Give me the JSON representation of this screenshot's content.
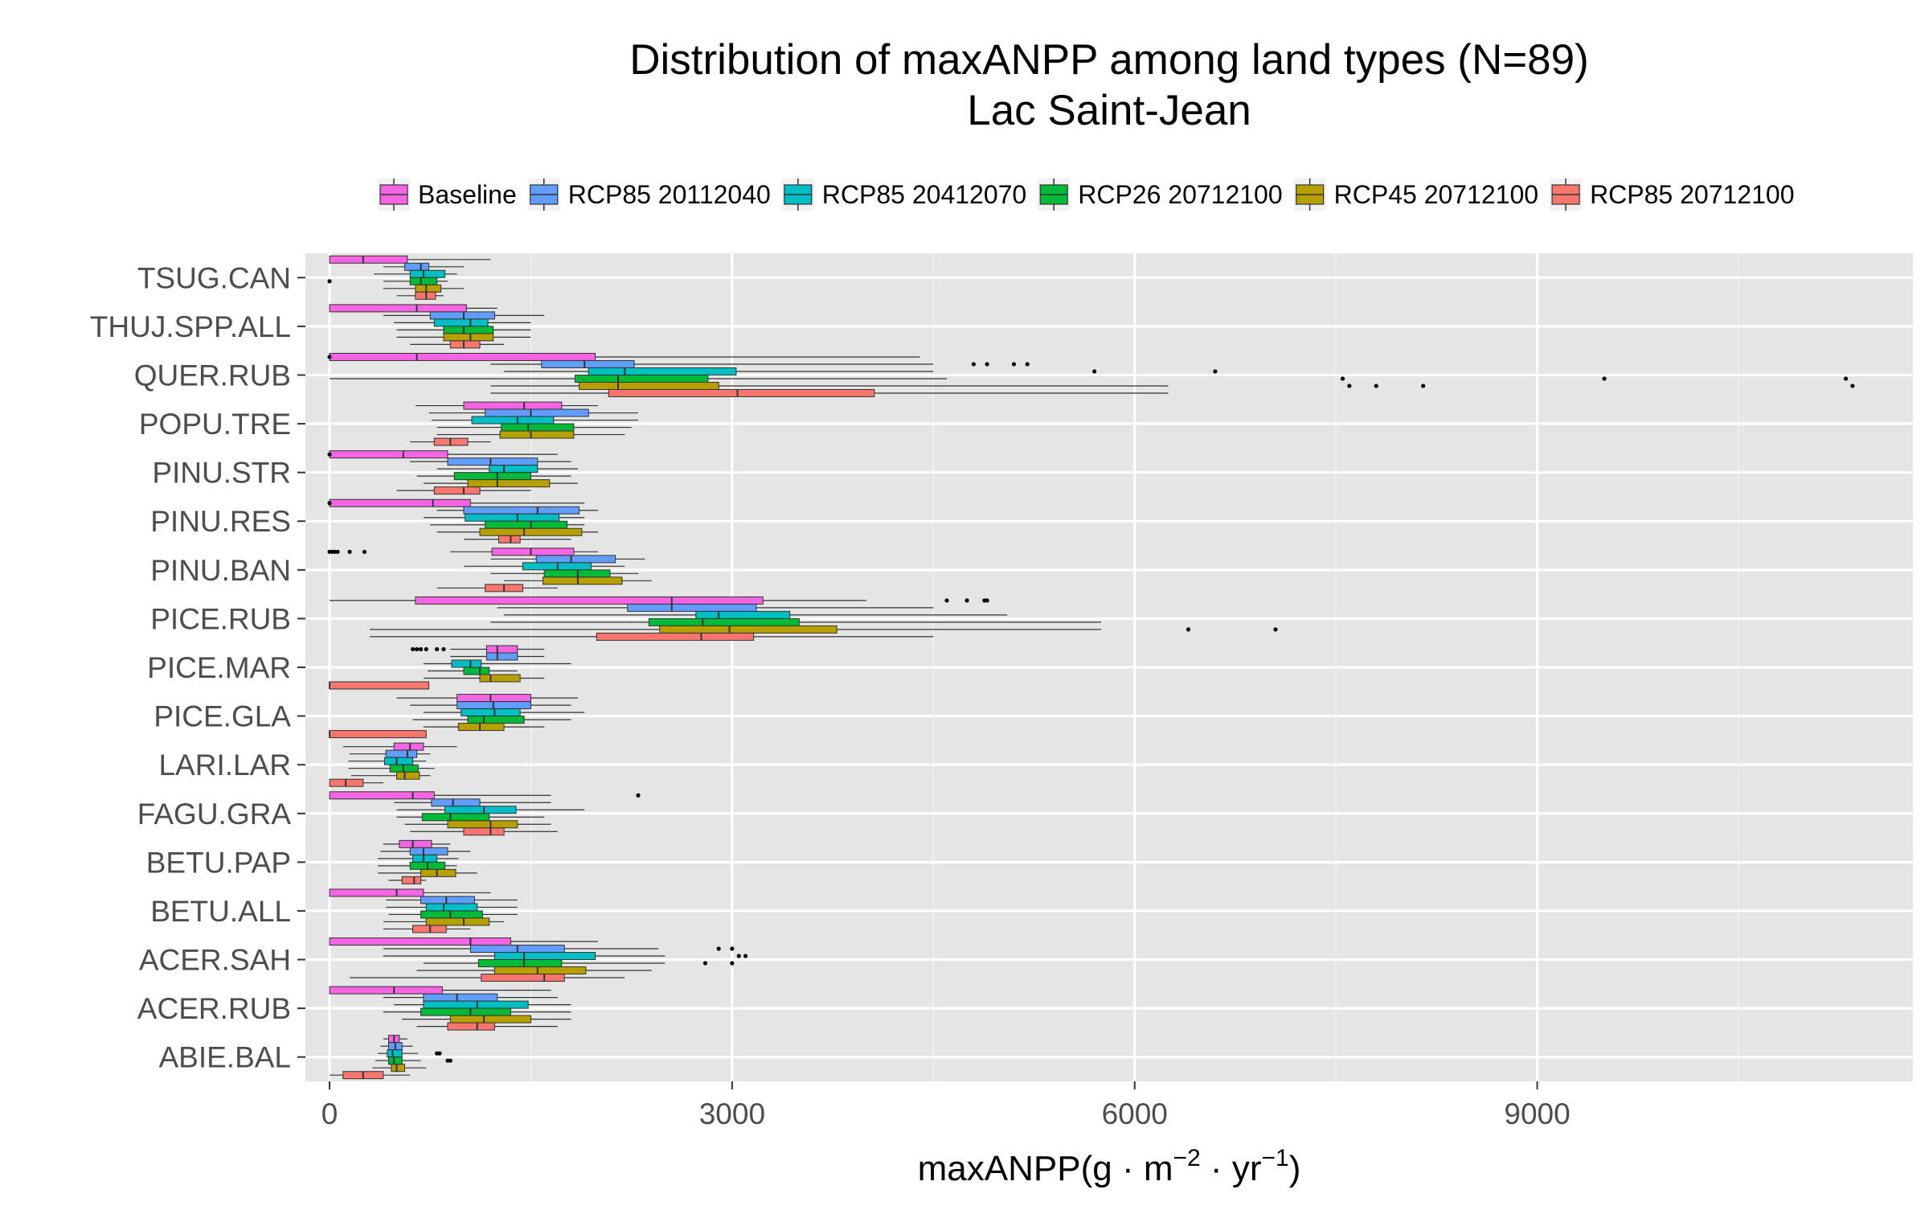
{
  "chart_data": {
    "type": "boxplot",
    "orientation": "horizontal",
    "title": "Distribution of maxANPP among land types (N=89)",
    "subtitle": "Lac Saint-Jean",
    "xlabel": "maxANPP(g · m⁻² · yr⁻¹)",
    "xlabel_parts": {
      "main": "maxANPP(g",
      "dot1": " · ",
      "m": "m",
      "m_exp": "−2",
      "dot2": " · ",
      "yr": "yr",
      "yr_exp": "−1",
      "close": ")"
    },
    "ylabel": "",
    "xlim": [
      -180,
      11800
    ],
    "xticks": [
      0,
      3000,
      6000,
      9000
    ],
    "xtick_labels": [
      "0",
      "3000",
      "6000",
      "9000"
    ],
    "grid": true,
    "legend_position": "top",
    "categories": [
      "ABIE.BAL",
      "ACER.RUB",
      "ACER.SAH",
      "BETU.ALL",
      "BETU.PAP",
      "FAGU.GRA",
      "LARI.LAR",
      "PICE.GLA",
      "PICE.MAR",
      "PICE.RUB",
      "PINU.BAN",
      "PINU.RES",
      "PINU.STR",
      "POPU.TRE",
      "QUER.RUB",
      "THUJ.SPP.ALL",
      "TSUG.CAN"
    ],
    "series": [
      {
        "name": "Baseline",
        "color": "#f564e3",
        "boxes": [
          {
            "q1": 440,
            "med": 480,
            "q3": 520,
            "wl": 400,
            "wh": 580,
            "out": []
          },
          {
            "q1": 0,
            "med": 480,
            "q3": 840,
            "wl": 0,
            "wh": 1650,
            "out": []
          },
          {
            "q1": 0,
            "med": 1050,
            "q3": 1350,
            "wl": 0,
            "wh": 2000,
            "out": []
          },
          {
            "q1": 0,
            "med": 500,
            "q3": 700,
            "wl": 0,
            "wh": 1200,
            "out": []
          },
          {
            "q1": 520,
            "med": 620,
            "q3": 760,
            "wl": 400,
            "wh": 900,
            "out": []
          },
          {
            "q1": 0,
            "med": 620,
            "q3": 780,
            "wl": 0,
            "wh": 1650,
            "out": [
              2300
            ]
          },
          {
            "q1": 480,
            "med": 600,
            "q3": 700,
            "wl": 100,
            "wh": 950,
            "out": []
          },
          {
            "q1": 950,
            "med": 1200,
            "q3": 1500,
            "wl": 500,
            "wh": 1850,
            "out": []
          },
          {
            "q1": 1170,
            "med": 1250,
            "q3": 1400,
            "wl": 900,
            "wh": 1600,
            "out": [
              620,
              650,
              680,
              720,
              800,
              850
            ]
          },
          {
            "q1": 640,
            "med": 2550,
            "q3": 3230,
            "wl": 0,
            "wh": 4000,
            "out": [
              4600,
              4750,
              4880,
              4900
            ]
          },
          {
            "q1": 1210,
            "med": 1500,
            "q3": 1820,
            "wl": 900,
            "wh": 2000,
            "out": [
              0,
              20,
              40,
              60,
              150,
              260
            ]
          },
          {
            "q1": 0,
            "med": 770,
            "q3": 1050,
            "wl": 0,
            "wh": 1900,
            "out": [
              0
            ]
          },
          {
            "q1": 0,
            "med": 550,
            "q3": 880,
            "wl": 0,
            "wh": 1700,
            "out": [
              0
            ]
          },
          {
            "q1": 1000,
            "med": 1450,
            "q3": 1730,
            "wl": 640,
            "wh": 2000,
            "out": []
          },
          {
            "q1": 0,
            "med": 650,
            "q3": 1980,
            "wl": 0,
            "wh": 4400,
            "out": [
              0
            ]
          },
          {
            "q1": 0,
            "med": 650,
            "q3": 1020,
            "wl": 0,
            "wh": 1250,
            "out": []
          },
          {
            "q1": 0,
            "med": 250,
            "q3": 580,
            "wl": 0,
            "wh": 1200,
            "out": []
          }
        ]
      },
      {
        "name": "RCP85 20112040",
        "color": "#619cff",
        "boxes": [
          {
            "q1": 440,
            "med": 490,
            "q3": 540,
            "wl": 380,
            "wh": 620,
            "out": []
          },
          {
            "q1": 700,
            "med": 950,
            "q3": 1250,
            "wl": 400,
            "wh": 1700,
            "out": []
          },
          {
            "q1": 1050,
            "med": 1400,
            "q3": 1750,
            "wl": 400,
            "wh": 2450,
            "out": [
              3000,
              2900
            ]
          },
          {
            "q1": 680,
            "med": 870,
            "q3": 1080,
            "wl": 420,
            "wh": 1400,
            "out": []
          },
          {
            "q1": 600,
            "med": 700,
            "q3": 880,
            "wl": 380,
            "wh": 1050,
            "out": []
          },
          {
            "q1": 760,
            "med": 920,
            "q3": 1120,
            "wl": 480,
            "wh": 1650,
            "out": []
          },
          {
            "q1": 420,
            "med": 580,
            "q3": 650,
            "wl": 150,
            "wh": 750,
            "out": []
          },
          {
            "q1": 950,
            "med": 1220,
            "q3": 1500,
            "wl": 600,
            "wh": 1800,
            "out": []
          },
          {
            "q1": 1170,
            "med": 1250,
            "q3": 1400,
            "wl": 900,
            "wh": 1600,
            "out": []
          },
          {
            "q1": 2220,
            "med": 2550,
            "q3": 3180,
            "wl": 1250,
            "wh": 4500,
            "out": []
          },
          {
            "q1": 1540,
            "med": 1800,
            "q3": 2130,
            "wl": 1200,
            "wh": 2350,
            "out": []
          },
          {
            "q1": 1000,
            "med": 1550,
            "q3": 1860,
            "wl": 800,
            "wh": 2000,
            "out": []
          },
          {
            "q1": 880,
            "med": 1200,
            "q3": 1550,
            "wl": 600,
            "wh": 1800,
            "out": []
          },
          {
            "q1": 1160,
            "med": 1500,
            "q3": 1930,
            "wl": 740,
            "wh": 2300,
            "out": []
          },
          {
            "q1": 1580,
            "med": 1900,
            "q3": 2270,
            "wl": 1200,
            "wh": 4500,
            "out": [
              4800,
              4900,
              5100,
              5200
            ]
          },
          {
            "q1": 750,
            "med": 1000,
            "q3": 1230,
            "wl": 400,
            "wh": 1600,
            "out": []
          },
          {
            "q1": 560,
            "med": 680,
            "q3": 740,
            "wl": 400,
            "wh": 1000,
            "out": []
          }
        ]
      },
      {
        "name": "RCP85 20412070",
        "color": "#00bfc4",
        "boxes": [
          {
            "q1": 430,
            "med": 470,
            "q3": 540,
            "wl": 360,
            "wh": 660,
            "out": [
              800,
              820
            ]
          },
          {
            "q1": 700,
            "med": 1100,
            "q3": 1480,
            "wl": 480,
            "wh": 1800,
            "out": []
          },
          {
            "q1": 1230,
            "med": 1450,
            "q3": 1980,
            "wl": 400,
            "wh": 2500,
            "out": [
              3050,
              3100
            ]
          },
          {
            "q1": 720,
            "med": 850,
            "q3": 1100,
            "wl": 420,
            "wh": 1400,
            "out": []
          },
          {
            "q1": 620,
            "med": 700,
            "q3": 800,
            "wl": 360,
            "wh": 960,
            "out": []
          },
          {
            "q1": 860,
            "med": 1150,
            "q3": 1390,
            "wl": 500,
            "wh": 1900,
            "out": []
          },
          {
            "q1": 410,
            "med": 500,
            "q3": 620,
            "wl": 140,
            "wh": 720,
            "out": []
          },
          {
            "q1": 980,
            "med": 1230,
            "q3": 1420,
            "wl": 700,
            "wh": 1900,
            "out": []
          },
          {
            "q1": 910,
            "med": 1050,
            "q3": 1130,
            "wl": 700,
            "wh": 1800,
            "out": []
          },
          {
            "q1": 2730,
            "med": 2900,
            "q3": 3430,
            "wl": 1300,
            "wh": 5050,
            "out": []
          },
          {
            "q1": 1440,
            "med": 1700,
            "q3": 1950,
            "wl": 1000,
            "wh": 2200,
            "out": []
          },
          {
            "q1": 1010,
            "med": 1400,
            "q3": 1710,
            "wl": 700,
            "wh": 1900,
            "out": []
          },
          {
            "q1": 1190,
            "med": 1300,
            "q3": 1550,
            "wl": 800,
            "wh": 1850,
            "out": []
          },
          {
            "q1": 1060,
            "med": 1400,
            "q3": 1670,
            "wl": 760,
            "wh": 2300,
            "out": []
          },
          {
            "q1": 1930,
            "med": 2200,
            "q3": 3030,
            "wl": 1300,
            "wh": 4500,
            "out": [
              6600,
              5700
            ]
          },
          {
            "q1": 780,
            "med": 1050,
            "q3": 1180,
            "wl": 480,
            "wh": 1500,
            "out": []
          },
          {
            "q1": 600,
            "med": 700,
            "q3": 860,
            "wl": 330,
            "wh": 950,
            "out": []
          }
        ]
      },
      {
        "name": "RCP26 20712100",
        "color": "#00ba38",
        "boxes": [
          {
            "q1": 440,
            "med": 480,
            "q3": 540,
            "wl": 340,
            "wh": 680,
            "out": [
              900,
              880
            ]
          },
          {
            "q1": 680,
            "med": 1050,
            "q3": 1350,
            "wl": 400,
            "wh": 1800,
            "out": []
          },
          {
            "q1": 1110,
            "med": 1450,
            "q3": 1730,
            "wl": 700,
            "wh": 2500,
            "out": [
              2800,
              3000
            ]
          },
          {
            "q1": 680,
            "med": 900,
            "q3": 1140,
            "wl": 440,
            "wh": 1400,
            "out": []
          },
          {
            "q1": 600,
            "med": 730,
            "q3": 860,
            "wl": 360,
            "wh": 950,
            "out": []
          },
          {
            "q1": 690,
            "med": 900,
            "q3": 1190,
            "wl": 500,
            "wh": 1600,
            "out": []
          },
          {
            "q1": 450,
            "med": 550,
            "q3": 660,
            "wl": 140,
            "wh": 780,
            "out": []
          },
          {
            "q1": 1030,
            "med": 1150,
            "q3": 1450,
            "wl": 620,
            "wh": 1800,
            "out": []
          },
          {
            "q1": 1000,
            "med": 1120,
            "q3": 1190,
            "wl": 730,
            "wh": 1400,
            "out": []
          },
          {
            "q1": 2380,
            "med": 2780,
            "q3": 3500,
            "wl": 1200,
            "wh": 5750,
            "out": []
          },
          {
            "q1": 1600,
            "med": 1850,
            "q3": 2090,
            "wl": 1200,
            "wh": 2300,
            "out": []
          },
          {
            "q1": 1160,
            "med": 1500,
            "q3": 1770,
            "wl": 750,
            "wh": 1900,
            "out": []
          },
          {
            "q1": 930,
            "med": 1250,
            "q3": 1500,
            "wl": 650,
            "wh": 1800,
            "out": []
          },
          {
            "q1": 1280,
            "med": 1480,
            "q3": 1820,
            "wl": 800,
            "wh": 2250,
            "out": []
          },
          {
            "q1": 1830,
            "med": 2150,
            "q3": 2820,
            "wl": 0,
            "wh": 4600,
            "out": [
              7550,
              9500,
              11300
            ]
          },
          {
            "q1": 850,
            "med": 1000,
            "q3": 1220,
            "wl": 500,
            "wh": 1500,
            "out": []
          },
          {
            "q1": 600,
            "med": 680,
            "q3": 800,
            "wl": 400,
            "wh": 880,
            "out": [
              0
            ]
          }
        ]
      },
      {
        "name": "RCP45 20712100",
        "color": "#b79f00",
        "boxes": [
          {
            "q1": 460,
            "med": 500,
            "q3": 560,
            "wl": 320,
            "wh": 720,
            "out": []
          },
          {
            "q1": 900,
            "med": 1150,
            "q3": 1500,
            "wl": 540,
            "wh": 1800,
            "out": []
          },
          {
            "q1": 1230,
            "med": 1550,
            "q3": 1910,
            "wl": 650,
            "wh": 2400,
            "out": []
          },
          {
            "q1": 720,
            "med": 1000,
            "q3": 1190,
            "wl": 400,
            "wh": 1300,
            "out": []
          },
          {
            "q1": 680,
            "med": 800,
            "q3": 940,
            "wl": 360,
            "wh": 1100,
            "out": []
          },
          {
            "q1": 880,
            "med": 1200,
            "q3": 1400,
            "wl": 560,
            "wh": 1650,
            "out": []
          },
          {
            "q1": 500,
            "med": 560,
            "q3": 670,
            "wl": 160,
            "wh": 750,
            "out": []
          },
          {
            "q1": 960,
            "med": 1120,
            "q3": 1300,
            "wl": 700,
            "wh": 1600,
            "out": []
          },
          {
            "q1": 1120,
            "med": 1200,
            "q3": 1420,
            "wl": 700,
            "wh": 1600,
            "out": []
          },
          {
            "q1": 2460,
            "med": 2980,
            "q3": 3780,
            "wl": 300,
            "wh": 5750,
            "out": [
              6400,
              7050
            ]
          },
          {
            "q1": 1590,
            "med": 1850,
            "q3": 2180,
            "wl": 1300,
            "wh": 2400,
            "out": []
          },
          {
            "q1": 1120,
            "med": 1450,
            "q3": 1880,
            "wl": 800,
            "wh": 2000,
            "out": []
          },
          {
            "q1": 1030,
            "med": 1250,
            "q3": 1640,
            "wl": 700,
            "wh": 1850,
            "out": []
          },
          {
            "q1": 1270,
            "med": 1500,
            "q3": 1820,
            "wl": 800,
            "wh": 2200,
            "out": []
          },
          {
            "q1": 1860,
            "med": 2150,
            "q3": 2900,
            "wl": 1200,
            "wh": 6250,
            "out": [
              7600,
              7800,
              8150,
              11350
            ]
          },
          {
            "q1": 850,
            "med": 1050,
            "q3": 1220,
            "wl": 500,
            "wh": 1500,
            "out": []
          },
          {
            "q1": 640,
            "med": 720,
            "q3": 830,
            "wl": 400,
            "wh": 1000,
            "out": []
          }
        ]
      },
      {
        "name": "RCP85 20712100",
        "color": "#f8766d",
        "boxes": [
          {
            "q1": 100,
            "med": 250,
            "q3": 400,
            "wl": 0,
            "wh": 600,
            "out": []
          },
          {
            "q1": 880,
            "med": 1100,
            "q3": 1230,
            "wl": 650,
            "wh": 1700,
            "out": []
          },
          {
            "q1": 1130,
            "med": 1600,
            "q3": 1750,
            "wl": 150,
            "wh": 2200,
            "out": []
          },
          {
            "q1": 620,
            "med": 750,
            "q3": 870,
            "wl": 400,
            "wh": 1050,
            "out": []
          },
          {
            "q1": 540,
            "med": 630,
            "q3": 680,
            "wl": 440,
            "wh": 720,
            "out": []
          },
          {
            "q1": 1000,
            "med": 1200,
            "q3": 1300,
            "wl": 600,
            "wh": 1700,
            "out": []
          },
          {
            "q1": 0,
            "med": 120,
            "q3": 250,
            "wl": 0,
            "wh": 400,
            "out": []
          },
          {
            "q1": 0,
            "med": 0,
            "q3": 720,
            "wl": 0,
            "wh": 720,
            "out": []
          },
          {
            "q1": 0,
            "med": 0,
            "q3": 740,
            "wl": 0,
            "wh": 740,
            "out": []
          },
          {
            "q1": 1990,
            "med": 2770,
            "q3": 3160,
            "wl": 300,
            "wh": 4500,
            "out": []
          },
          {
            "q1": 1160,
            "med": 1300,
            "q3": 1440,
            "wl": 800,
            "wh": 1700,
            "out": []
          },
          {
            "q1": 1260,
            "med": 1350,
            "q3": 1420,
            "wl": 1000,
            "wh": 1800,
            "out": []
          },
          {
            "q1": 780,
            "med": 1000,
            "q3": 1120,
            "wl": 500,
            "wh": 1500,
            "out": []
          },
          {
            "q1": 780,
            "med": 900,
            "q3": 1030,
            "wl": 600,
            "wh": 1200,
            "out": []
          },
          {
            "q1": 2080,
            "med": 3040,
            "q3": 4060,
            "wl": 1200,
            "wh": 6250,
            "out": []
          },
          {
            "q1": 900,
            "med": 1000,
            "q3": 1120,
            "wl": 600,
            "wh": 1300,
            "out": []
          },
          {
            "q1": 640,
            "med": 720,
            "q3": 790,
            "wl": 500,
            "wh": 850,
            "out": []
          }
        ]
      }
    ]
  }
}
